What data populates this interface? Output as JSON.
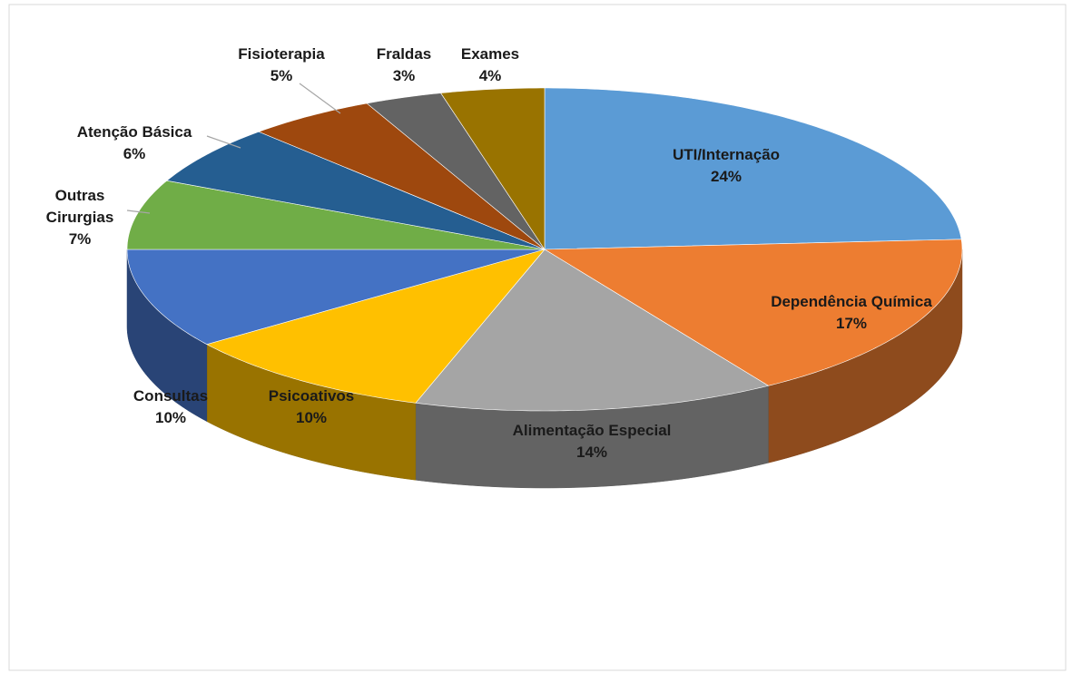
{
  "chart_data": {
    "type": "pie",
    "categories": [
      "UTI/Internação",
      "Dependência Química",
      "Alimentação Especial",
      "Psicoativos",
      "Consultas",
      "Outras Cirurgias",
      "Atenção Básica",
      "Fisioterapia",
      "Fraldas",
      "Exames"
    ],
    "values": [
      24,
      17,
      14,
      10,
      10,
      7,
      6,
      5,
      3,
      4
    ],
    "value_labels": [
      "24%",
      "17%",
      "14%",
      "10%",
      "10%",
      "7%",
      "6%",
      "5%",
      "3%",
      "4%"
    ],
    "colors": [
      "#5b9bd5",
      "#ed7d31",
      "#a5a5a5",
      "#ffc000",
      "#4472c4",
      "#70ad47",
      "#255e91",
      "#9e480e",
      "#636363",
      "#997300"
    ]
  }
}
